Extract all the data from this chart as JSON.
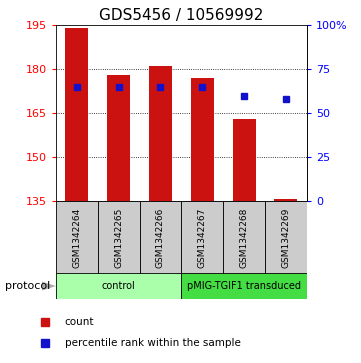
{
  "title": "GDS5456 / 10569992",
  "samples": [
    "GSM1342264",
    "GSM1342265",
    "GSM1342266",
    "GSM1342267",
    "GSM1342268",
    "GSM1342269"
  ],
  "counts": [
    194,
    178,
    181,
    177,
    163,
    136
  ],
  "percentile_ranks": [
    65,
    65,
    65,
    65,
    60,
    58
  ],
  "ylim_left": [
    135,
    195
  ],
  "yticks_left": [
    135,
    150,
    165,
    180,
    195
  ],
  "ylim_right": [
    0,
    100
  ],
  "yticks_right": [
    0,
    25,
    50,
    75,
    100
  ],
  "bar_color": "#cc1111",
  "marker_color": "#1111cc",
  "bar_bottom": 135,
  "groups": [
    {
      "label": "control",
      "start": 0,
      "end": 3,
      "color": "#aaffaa"
    },
    {
      "label": "pMIG-TGIF1 transduced",
      "start": 3,
      "end": 6,
      "color": "#44dd44"
    }
  ],
  "protocol_label": "protocol",
  "legend_count_label": "count",
  "legend_pct_label": "percentile rank within the sample",
  "title_fontsize": 11,
  "tick_fontsize": 8,
  "label_fontsize": 7
}
